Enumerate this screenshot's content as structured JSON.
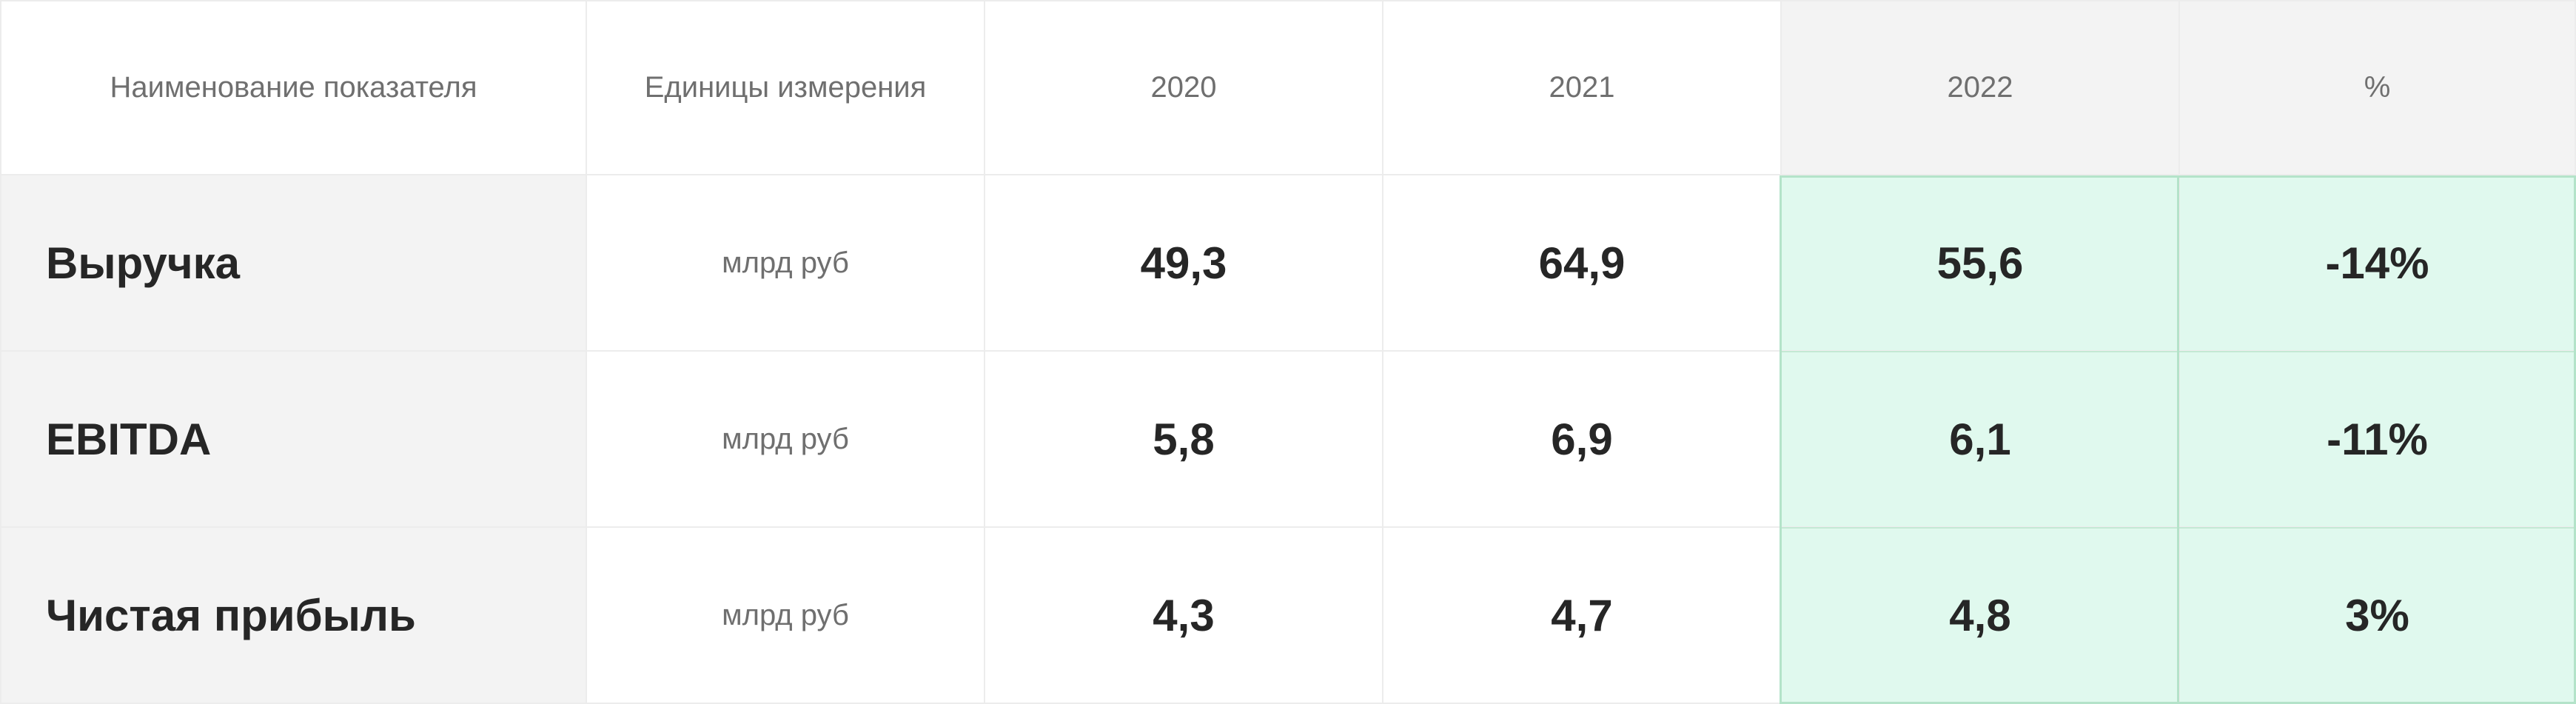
{
  "table": {
    "headers": [
      "Наименование показателя",
      "Единицы измерения",
      "2020",
      "2021",
      "2022",
      "%"
    ],
    "rows": [
      {
        "label": "Выручка",
        "unit": "млрд руб",
        "v2020": "49,3",
        "v2021": "64,9",
        "v2022": "55,6",
        "pct": "-14%"
      },
      {
        "label": "EBITDA",
        "unit": "млрд руб",
        "v2020": "5,8",
        "v2021": "6,9",
        "v2022": "6,1",
        "pct": "-11%"
      },
      {
        "label": "Чистая прибыль",
        "unit": "млрд руб",
        "v2020": "4,3",
        "v2021": "4,7",
        "v2022": "4,8",
        "pct": "3%"
      }
    ]
  },
  "colors": {
    "highlight_bg": "#e0f9ee",
    "highlight_border": "#b4e3c9",
    "label_bg": "#f3f3f3",
    "header_highlight_bg": "#f3f3f3"
  }
}
